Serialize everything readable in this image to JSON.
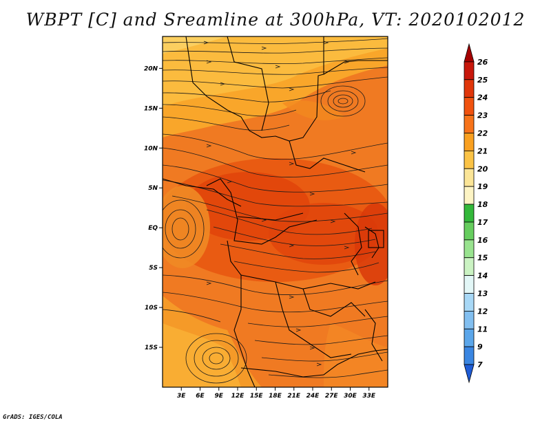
{
  "title": "WBPT [C] and Sreamline at 300hPa, VT: 2020102012",
  "credit": "GrADS: IGES/COLA",
  "map": {
    "lon_range": [
      0,
      36
    ],
    "lat_range": [
      -20,
      24
    ],
    "lon_ticks": [
      "3E",
      "6E",
      "9E",
      "12E",
      "15E",
      "18E",
      "21E",
      "24E",
      "27E",
      "30E",
      "33E"
    ],
    "lon_values": [
      3,
      6,
      9,
      12,
      15,
      18,
      21,
      24,
      27,
      30,
      33
    ],
    "lat_ticks": [
      "20N",
      "15N",
      "10N",
      "5N",
      "EQ",
      "5S",
      "10S",
      "15S"
    ],
    "lat_values": [
      20,
      15,
      10,
      5,
      0,
      -5,
      -10,
      -15
    ]
  },
  "colorbar": {
    "labels": [
      "26",
      "25",
      "24",
      "23",
      "22",
      "21",
      "20",
      "19",
      "18",
      "17",
      "16",
      "15",
      "14",
      "13",
      "12",
      "11",
      "9",
      "7"
    ],
    "colors": [
      "#a50000",
      "#c8170b",
      "#e0360a",
      "#f0520f",
      "#f7731a",
      "#f9a020",
      "#fbc346",
      "#fbe597",
      "#fdf4c4",
      "#33b83a",
      "#66cd5e",
      "#99e38f",
      "#cbf3c3",
      "#e3f7f7",
      "#a8d8f6",
      "#82bff0",
      "#5ba6ea",
      "#3a86e2",
      "#1e5cd6"
    ]
  }
}
